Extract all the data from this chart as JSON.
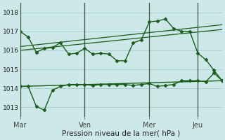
{
  "background_color": "#cce8e8",
  "grid_color": "#aacccc",
  "line_color": "#1a5c1a",
  "marker_color": "#1a5c1a",
  "xlabel": "Pression niveau de la mer( hPa )",
  "ylim": [
    1012.5,
    1018.5
  ],
  "yticks": [
    1013,
    1014,
    1015,
    1016,
    1017,
    1018
  ],
  "xtick_labels": [
    "Mar",
    "Ven",
    "Mer",
    "Jeu"
  ],
  "xtick_positions": [
    0,
    8,
    16,
    22
  ],
  "vline_positions": [
    0,
    8,
    16,
    22
  ],
  "xlim": [
    0,
    25
  ],
  "series": [
    {
      "x": [
        0,
        1,
        2,
        3,
        4,
        5,
        6,
        7,
        8,
        9,
        10,
        11,
        12,
        13,
        14,
        15,
        16,
        17,
        18,
        19,
        20,
        21,
        22,
        23,
        24,
        25
      ],
      "y": [
        1017.0,
        1016.7,
        1015.9,
        1016.1,
        1016.15,
        1016.4,
        1015.8,
        1015.85,
        1016.1,
        1015.8,
        1015.85,
        1015.8,
        1015.45,
        1015.45,
        1016.4,
        1016.55,
        1017.5,
        1017.55,
        1017.65,
        1017.15,
        1017.0,
        1017.0,
        1015.85,
        1015.5,
        1014.95,
        1014.4
      ],
      "has_markers": true,
      "marker": "D",
      "markersize": 2.5,
      "linewidth": 1.0
    },
    {
      "x": [
        0,
        25
      ],
      "y": [
        1016.0,
        1017.1
      ],
      "has_markers": false,
      "linewidth": 0.9
    },
    {
      "x": [
        0,
        25
      ],
      "y": [
        1016.2,
        1017.35
      ],
      "has_markers": false,
      "linewidth": 0.9
    },
    {
      "x": [
        0,
        25
      ],
      "y": [
        1014.1,
        1014.4
      ],
      "has_markers": false,
      "linewidth": 1.0
    },
    {
      "x": [
        0,
        1,
        2,
        3,
        4,
        5,
        6,
        7,
        8,
        9,
        10,
        11,
        12,
        13,
        14,
        15,
        16,
        17,
        18,
        19,
        20,
        21,
        22,
        23,
        24,
        25
      ],
      "y": [
        1014.1,
        1014.1,
        1013.05,
        1012.85,
        1013.9,
        1014.1,
        1014.2,
        1014.2,
        1014.2,
        1014.15,
        1014.2,
        1014.2,
        1014.2,
        1014.2,
        1014.15,
        1014.2,
        1014.25,
        1014.1,
        1014.15,
        1014.2,
        1014.4,
        1014.4,
        1014.4,
        1014.35,
        1014.8,
        1014.4
      ],
      "has_markers": true,
      "marker": "D",
      "markersize": 2.5,
      "linewidth": 1.0
    }
  ]
}
